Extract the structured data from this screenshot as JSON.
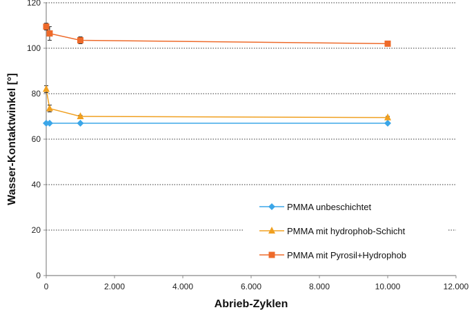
{
  "chart_data": {
    "type": "line",
    "title": "",
    "xlabel": "Abrieb-Zyklen",
    "ylabel": "Wasser-Kontaktwinkel [°]",
    "xlim": [
      0,
      12000
    ],
    "ylim": [
      0,
      120
    ],
    "xticks": [
      0,
      2000,
      4000,
      6000,
      8000,
      10000,
      12000
    ],
    "xtick_labels": [
      "0",
      "2.000",
      "4.000",
      "6.000",
      "8.000",
      "10.000",
      "12.000"
    ],
    "yticks": [
      0,
      20,
      40,
      60,
      80,
      100,
      120
    ],
    "ytick_labels": [
      "0",
      "20",
      "40",
      "60",
      "80",
      "100",
      "120"
    ],
    "grid": "horizontal dotted",
    "legend_position": "bottom-right",
    "series": [
      {
        "name": "PMMA unbeschichtet",
        "color": "#3ba6e8",
        "marker": "diamond",
        "x": [
          0,
          100,
          1000,
          10000
        ],
        "y": [
          67,
          67,
          67,
          67
        ],
        "err": [
          0,
          0,
          0,
          0
        ]
      },
      {
        "name": "PMMA mit hydrophob-Schicht",
        "color": "#f0a020",
        "marker": "triangle",
        "x": [
          0,
          100,
          1000,
          10000
        ],
        "y": [
          82,
          73.5,
          70,
          69.5
        ],
        "err": [
          1.5,
          1.5,
          0.5,
          0.5
        ]
      },
      {
        "name": "PMMA mit Pyrosil+Hydrophob",
        "color": "#ee6a2a",
        "marker": "square",
        "x": [
          0,
          100,
          1000,
          10000
        ],
        "y": [
          109.5,
          106.5,
          103.5,
          102
        ],
        "err": [
          1.5,
          3,
          1.5,
          0.5
        ]
      }
    ]
  }
}
